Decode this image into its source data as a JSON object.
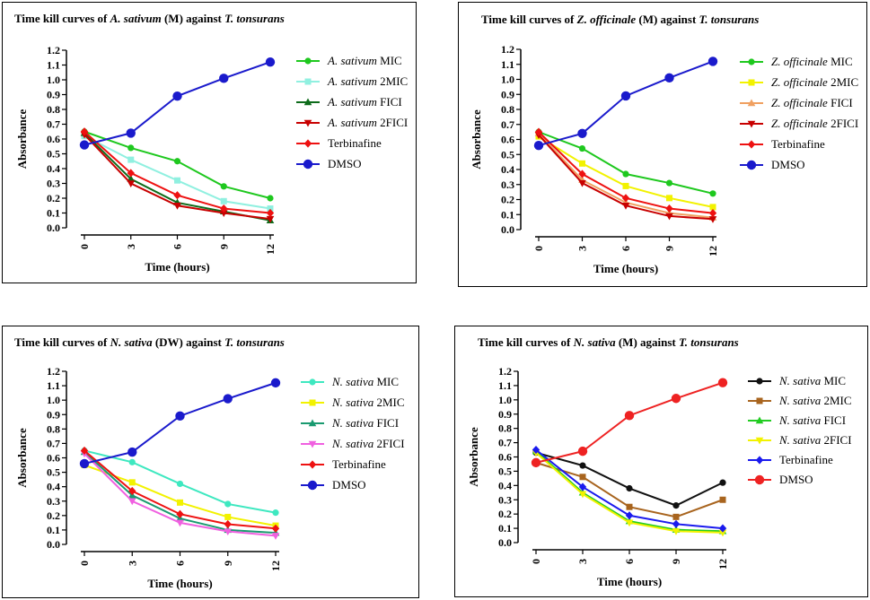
{
  "chart_data": [
    {
      "type": "line",
      "title": {
        "pre": "Time kill curves of ",
        "italic1": "A. sativum",
        "mid": " (M) against ",
        "italic2": "T. tonsurans"
      },
      "xlabel": "Time (hours)",
      "ylabel": "Absorbance",
      "x": [
        0,
        3,
        6,
        9,
        12
      ],
      "x_tick_labels": [
        "0",
        "3",
        "6",
        "9",
        "12"
      ],
      "ylim": [
        0,
        1.2
      ],
      "y_ticks": [
        "0.0",
        "0.1",
        "0.2",
        "0.3",
        "0.4",
        "0.5",
        "0.6",
        "0.7",
        "0.8",
        "0.9",
        "1.0",
        "1.1",
        "1.2"
      ],
      "series": [
        {
          "name": "MIC",
          "italic": "A. sativum",
          "color": "#1ec81e",
          "marker": "circle",
          "values": [
            0.65,
            0.54,
            0.45,
            0.28,
            0.2
          ]
        },
        {
          "name": "2MIC",
          "italic": "A. sativum",
          "color": "#90f0e0",
          "marker": "square",
          "values": [
            0.62,
            0.46,
            0.32,
            0.18,
            0.13
          ]
        },
        {
          "name": "FICI",
          "italic": "A. sativum",
          "color": "#0d6b1a",
          "marker": "triangle-up",
          "values": [
            0.64,
            0.33,
            0.17,
            0.11,
            0.05
          ]
        },
        {
          "name": "2FICI",
          "italic": "A. sativum",
          "color": "#c80000",
          "marker": "triangle-down",
          "values": [
            0.63,
            0.3,
            0.15,
            0.1,
            0.06
          ]
        },
        {
          "name": "Terbinafine",
          "italic": "",
          "color": "#ee1111",
          "marker": "diamond",
          "values": [
            0.65,
            0.37,
            0.22,
            0.13,
            0.1
          ]
        },
        {
          "name": "DMSO",
          "italic": "",
          "color": "#1a1acc",
          "marker": "bigcircle",
          "values": [
            0.56,
            0.64,
            0.89,
            1.01,
            1.12
          ]
        }
      ]
    },
    {
      "type": "line",
      "title": {
        "pre": "Time kill curves of ",
        "italic1": "Z. officinale",
        "mid": " (M) against ",
        "italic2": "T. tonsurans"
      },
      "xlabel": "Time (hours)",
      "ylabel": "Absorbance",
      "x": [
        0,
        3,
        6,
        9,
        12
      ],
      "x_tick_labels": [
        "0",
        "3",
        "6",
        "9",
        "12"
      ],
      "ylim": [
        0,
        1.2
      ],
      "y_ticks": [
        "0.0",
        "0.1",
        "0.2",
        "0.3",
        "0.4",
        "0.5",
        "0.6",
        "0.7",
        "0.8",
        "0.9",
        "1.0",
        "1.1",
        "1.2"
      ],
      "series": [
        {
          "name": "MIC",
          "italic": "Z. officinale",
          "color": "#1ec81e",
          "marker": "circle",
          "values": [
            0.65,
            0.54,
            0.37,
            0.31,
            0.24
          ]
        },
        {
          "name": "2MIC",
          "italic": "Z. officinale",
          "color": "#f2f200",
          "marker": "square",
          "values": [
            0.62,
            0.44,
            0.29,
            0.21,
            0.15
          ]
        },
        {
          "name": "FICI",
          "italic": "Z. officinale",
          "color": "#f0a060",
          "marker": "triangle-up",
          "values": [
            0.64,
            0.33,
            0.18,
            0.11,
            0.08
          ]
        },
        {
          "name": "2FICI",
          "italic": "Z. officinale",
          "color": "#c80000",
          "marker": "triangle-down",
          "values": [
            0.63,
            0.31,
            0.16,
            0.09,
            0.07
          ]
        },
        {
          "name": "Terbinafine",
          "italic": "",
          "color": "#ee1111",
          "marker": "diamond",
          "values": [
            0.65,
            0.37,
            0.21,
            0.14,
            0.11
          ]
        },
        {
          "name": "DMSO",
          "italic": "",
          "color": "#1a1acc",
          "marker": "bigcircle",
          "values": [
            0.56,
            0.64,
            0.89,
            1.01,
            1.12
          ]
        }
      ]
    },
    {
      "type": "line",
      "title": {
        "pre": "Time kill curves of ",
        "italic1": "N. sativa",
        "mid": " (DW) against ",
        "italic2": "T. tonsurans"
      },
      "xlabel": "Time (hours)",
      "ylabel": "Absorbance",
      "x": [
        0,
        3,
        6,
        9,
        12
      ],
      "x_tick_labels": [
        "0",
        "3",
        "6",
        "9",
        "12"
      ],
      "ylim": [
        0,
        1.2
      ],
      "y_ticks": [
        "0.0",
        "0.1",
        "0.2",
        "0.3",
        "0.4",
        "0.5",
        "0.6",
        "0.7",
        "0.8",
        "0.9",
        "1.0",
        "1.1",
        "1.2"
      ],
      "series": [
        {
          "name": "MIC",
          "italic": "N. sativa",
          "color": "#3ee8c0",
          "marker": "circle",
          "values": [
            0.65,
            0.57,
            0.42,
            0.28,
            0.22
          ]
        },
        {
          "name": "2MIC",
          "italic": "N. sativa",
          "color": "#f2f200",
          "marker": "square",
          "values": [
            0.55,
            0.43,
            0.29,
            0.19,
            0.13
          ]
        },
        {
          "name": "FICI",
          "italic": "N. sativa",
          "color": "#1a9a70",
          "marker": "triangle-up",
          "values": [
            0.64,
            0.34,
            0.18,
            0.1,
            0.08
          ]
        },
        {
          "name": "2FICI",
          "italic": "N. sativa",
          "color": "#f060e0",
          "marker": "triangle-down",
          "values": [
            0.63,
            0.3,
            0.15,
            0.09,
            0.06
          ]
        },
        {
          "name": "Terbinafine",
          "italic": "",
          "color": "#ee1111",
          "marker": "diamond",
          "values": [
            0.65,
            0.37,
            0.21,
            0.14,
            0.11
          ]
        },
        {
          "name": "DMSO",
          "italic": "",
          "color": "#1a1acc",
          "marker": "bigcircle",
          "values": [
            0.56,
            0.64,
            0.89,
            1.01,
            1.12
          ]
        }
      ]
    },
    {
      "type": "line",
      "title": {
        "pre": "Time kill curves of ",
        "italic1": "N. sativa",
        "mid": " (M) against ",
        "italic2": "T. tonsurans"
      },
      "xlabel": "Time (hours)",
      "ylabel": "Absorbance",
      "x": [
        0,
        3,
        6,
        9,
        12
      ],
      "x_tick_labels": [
        "0",
        "3",
        "6",
        "9",
        "12"
      ],
      "ylim": [
        0,
        1.2
      ],
      "y_ticks": [
        "0.0",
        "0.1",
        "0.2",
        "0.3",
        "0.4",
        "0.5",
        "0.6",
        "0.7",
        "0.8",
        "0.9",
        "1.0",
        "1.1",
        "1.2"
      ],
      "series": [
        {
          "name": "MIC",
          "italic": "N. sativa",
          "color": "#111111",
          "marker": "circle",
          "values": [
            0.63,
            0.54,
            0.38,
            0.26,
            0.42
          ]
        },
        {
          "name": "2MIC",
          "italic": "N. sativa",
          "color": "#a8641e",
          "marker": "square",
          "values": [
            0.56,
            0.46,
            0.25,
            0.18,
            0.3
          ]
        },
        {
          "name": "FICI",
          "italic": "N. sativa",
          "color": "#22cc22",
          "marker": "triangle-up",
          "values": [
            0.64,
            0.35,
            0.15,
            0.09,
            0.08
          ]
        },
        {
          "name": "2FICI",
          "italic": "N. sativa",
          "color": "#f2f200",
          "marker": "triangle-down",
          "values": [
            0.63,
            0.34,
            0.14,
            0.08,
            0.07
          ]
        },
        {
          "name": "Terbinafine",
          "italic": "",
          "color": "#1a1aee",
          "marker": "diamond",
          "values": [
            0.65,
            0.39,
            0.19,
            0.13,
            0.1
          ]
        },
        {
          "name": "DMSO",
          "italic": "",
          "color": "#ee2222",
          "marker": "bigcircle",
          "values": [
            0.56,
            0.64,
            0.89,
            1.01,
            1.12
          ]
        }
      ]
    }
  ]
}
